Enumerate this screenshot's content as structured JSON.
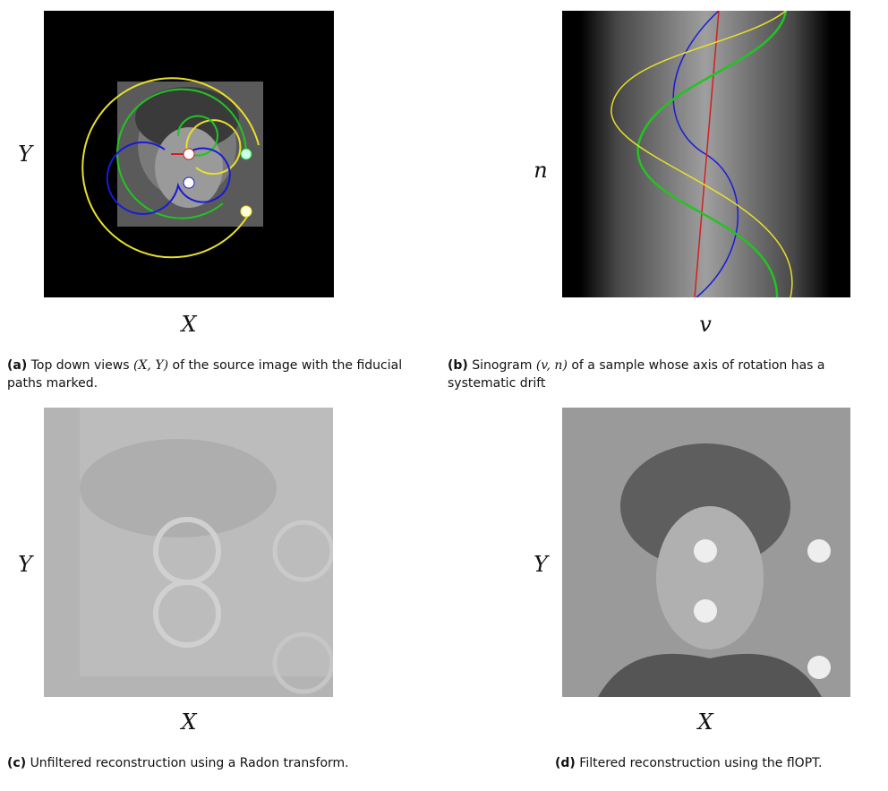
{
  "panels": [
    {
      "label": "(a)",
      "caption": [
        "Top down views ",
        "(X, Y)",
        " of the source image with the fiducial paths marked."
      ],
      "x_label": "X",
      "y_label": "Y"
    },
    {
      "label": "(b)",
      "caption": [
        "Sinogram ",
        "(v, n)",
        " of a sample whose axis of rotation has a systematic drift"
      ],
      "x_label": "v",
      "y_label": "n"
    },
    {
      "label": "(c)",
      "caption": [
        "Unfiltered reconstruction using a Radon transform."
      ],
      "x_label": "X",
      "y_label": "Y"
    },
    {
      "label": "(d)",
      "caption": [
        "Filtered reconstruction using the flOPT."
      ],
      "x_label": "X",
      "y_label": "Y"
    }
  ]
}
